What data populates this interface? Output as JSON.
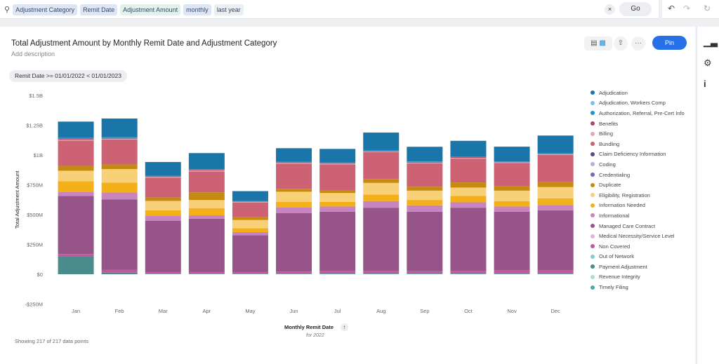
{
  "search": {
    "tokens": [
      {
        "label": "Adjustment Category",
        "style": "blue"
      },
      {
        "label": "Remit Date",
        "style": "blue"
      },
      {
        "label": "Adjustment Amount",
        "style": "green"
      },
      {
        "label": "monthly",
        "style": "blue"
      },
      {
        "label": "last year",
        "style": "grey"
      }
    ],
    "clear": "×",
    "go": "Go"
  },
  "header": {
    "title": "Total Adjustment Amount by Monthly Remit Date and Adjustment Category",
    "description": "Add description",
    "filter": "Remit Date >= 01/01/2022 < 01/01/2023",
    "pin": "Pin",
    "more": "···"
  },
  "footer": {
    "showing": "Showing 217 of 217 data points",
    "xsub": "for 2022"
  },
  "chart_data": {
    "type": "bar",
    "stacked": true,
    "title": "Total Adjustment Amount by Monthly Remit Date and Adjustment Category",
    "xlabel": "Monthly Remit Date",
    "ylabel": "Total Adjustment Amount",
    "ylim": [
      -250,
      1500
    ],
    "unit": "$M",
    "yticks": [
      {
        "v": 1500,
        "label": "$1.5B"
      },
      {
        "v": 1250,
        "label": "$1.25B"
      },
      {
        "v": 1000,
        "label": "$1B"
      },
      {
        "v": 750,
        "label": "$750M"
      },
      {
        "v": 500,
        "label": "$500M"
      },
      {
        "v": 250,
        "label": "$250M"
      },
      {
        "v": 0,
        "label": "$0"
      },
      {
        "v": -250,
        "label": "-$250M"
      }
    ],
    "categories": [
      "Jan",
      "Feb",
      "Mar",
      "Apr",
      "May",
      "Jun",
      "Jul",
      "Aug",
      "Sep",
      "Oct",
      "Nov",
      "Dec"
    ],
    "legend_position": "right",
    "series": [
      {
        "name": "Adjudication",
        "color": "#1a75a8",
        "values": [
          135,
          157,
          116,
          135,
          84,
          114,
          114,
          147,
          123,
          133,
          123,
          147
        ]
      },
      {
        "name": "Adjudication, Workers Comp",
        "color": "#7cc0e6",
        "values": [
          0,
          0,
          0,
          0,
          0,
          0,
          0,
          0,
          0,
          0,
          0,
          0
        ]
      },
      {
        "name": "Authorization, Referral, Pre-Cert Info",
        "color": "#1b94d2",
        "values": [
          8,
          6,
          4,
          4,
          3,
          4,
          4,
          5,
          4,
          4,
          4,
          4
        ]
      },
      {
        "name": "Benefits",
        "color": "#a8485a",
        "values": [
          8,
          6,
          4,
          6,
          3,
          5,
          5,
          6,
          6,
          6,
          4,
          5
        ]
      },
      {
        "name": "Billing",
        "color": "#e6a6b4",
        "values": [
          8,
          6,
          6,
          8,
          5,
          6,
          6,
          6,
          6,
          6,
          5,
          6
        ]
      },
      {
        "name": "Bundling",
        "color": "#cc6274",
        "values": [
          212,
          210,
          169,
          176,
          122,
          212,
          216,
          225,
          196,
          200,
          198,
          227
        ]
      },
      {
        "name": "Claim Deficiency Information",
        "color": "#5a4a8a",
        "values": [
          0,
          0,
          0,
          0,
          0,
          0,
          0,
          0,
          0,
          0,
          0,
          0
        ]
      },
      {
        "name": "Coding",
        "color": "#b8acd8",
        "values": [
          0,
          0,
          0,
          0,
          0,
          0,
          0,
          0,
          0,
          0,
          0,
          0
        ]
      },
      {
        "name": "Credentialing",
        "color": "#7a64b4",
        "values": [
          0,
          0,
          0,
          0,
          0,
          0,
          0,
          0,
          0,
          0,
          0,
          0
        ]
      },
      {
        "name": "Duplicate",
        "color": "#c58a10",
        "values": [
          41,
          39,
          27,
          65,
          25,
          24,
          25,
          33,
          33,
          43,
          35,
          43
        ]
      },
      {
        "name": "Eligibility, Registration",
        "color": "#f8d078",
        "values": [
          88,
          113,
          78,
          69,
          69,
          84,
          74,
          98,
          78,
          71,
          88,
          94
        ]
      },
      {
        "name": "Information Needed",
        "color": "#f4b019",
        "values": [
          88,
          84,
          45,
          59,
          33,
          49,
          39,
          55,
          45,
          53,
          45,
          57
        ]
      },
      {
        "name": "Informational",
        "color": "#c884c0",
        "values": [
          35,
          57,
          43,
          29,
          25,
          47,
          43,
          55,
          53,
          45,
          43,
          45
        ]
      },
      {
        "name": "Managed Care Contract",
        "color": "#965488",
        "values": [
          488,
          590,
          431,
          447,
          310,
          490,
          496,
          529,
          500,
          529,
          490,
          500
        ]
      },
      {
        "name": "Medical Necessity/Service Level",
        "color": "#e6b0dc",
        "values": [
          0,
          0,
          0,
          0,
          0,
          0,
          0,
          0,
          0,
          0,
          0,
          0
        ]
      },
      {
        "name": "Non Covered",
        "color": "#c15a9c",
        "values": [
          22,
          24,
          14,
          14,
          14,
          18,
          24,
          24,
          20,
          24,
          30,
          30
        ]
      },
      {
        "name": "Out of Network",
        "color": "#88c8d0",
        "values": [
          0,
          0,
          0,
          0,
          0,
          0,
          0,
          0,
          0,
          0,
          0,
          0
        ]
      },
      {
        "name": "Payment Adjustment",
        "color": "#4a8c8c",
        "values": [
          147,
          14,
          0,
          0,
          0,
          0,
          0,
          0,
          0,
          0,
          0,
          0
        ]
      },
      {
        "name": "Revenue Integrity",
        "color": "#a8dcd8",
        "values": [
          0,
          0,
          0,
          0,
          0,
          0,
          0,
          0,
          0,
          0,
          0,
          0
        ]
      },
      {
        "name": "Timely Filing",
        "color": "#4aaaa8",
        "values": [
          0,
          0,
          4,
          4,
          4,
          4,
          5,
          5,
          5,
          5,
          5,
          5
        ]
      }
    ]
  }
}
